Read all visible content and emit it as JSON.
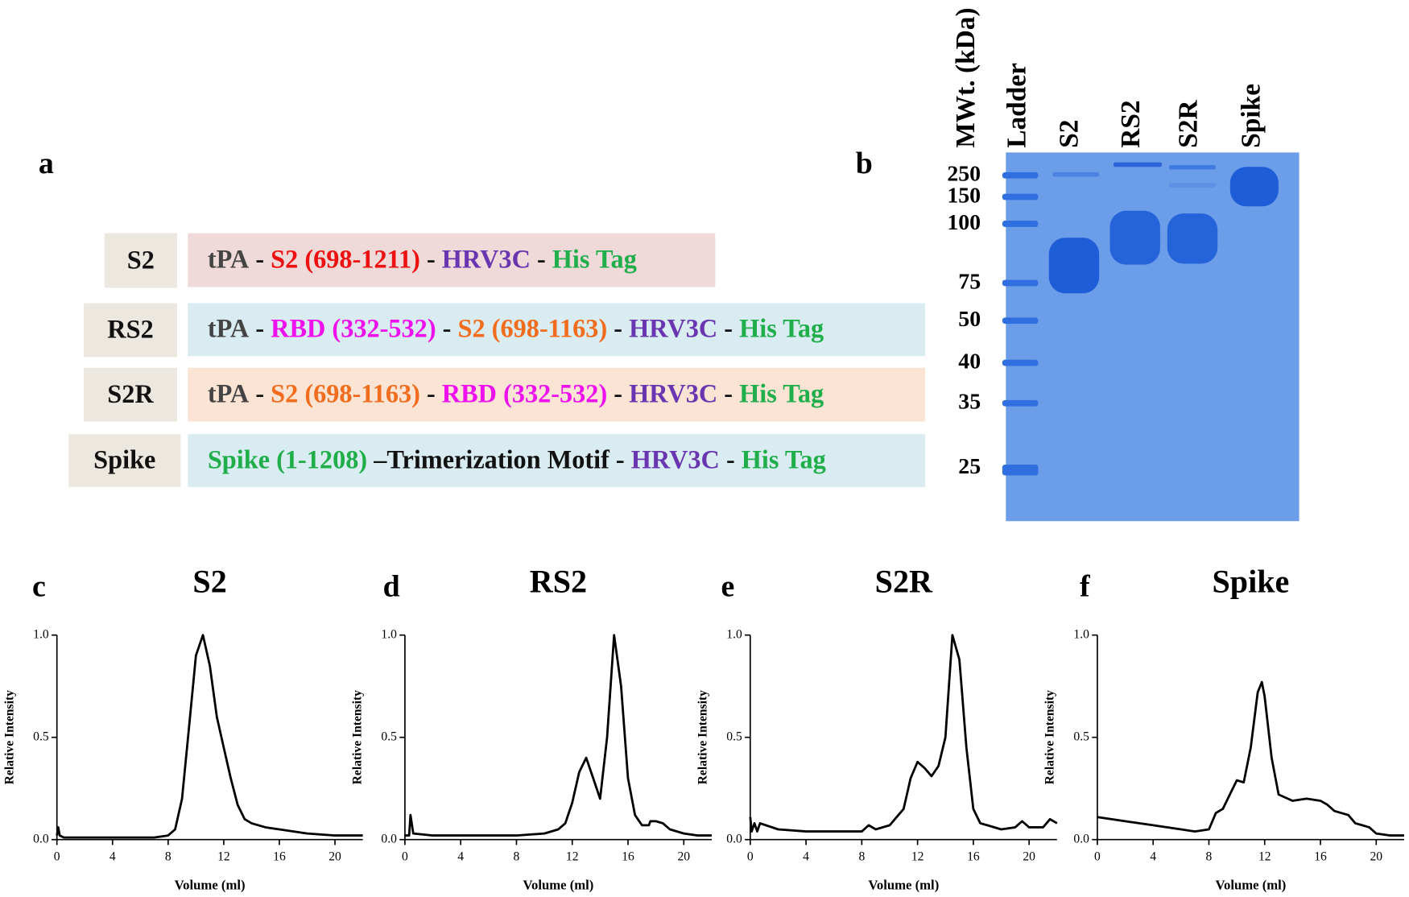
{
  "panel_labels": [
    "a",
    "b",
    "c",
    "d",
    "e",
    "f"
  ],
  "constructs": [
    {
      "label": "S2",
      "box": "#f0d9d9",
      "segments": [
        {
          "text": "tPA",
          "color": "#444444"
        },
        {
          "text": " - ",
          "color": "#111111"
        },
        {
          "text": "S2 (698-1211)",
          "color": "#ee1111"
        },
        {
          "text": " - ",
          "color": "#111111"
        },
        {
          "text": "HRV3C",
          "color": "#6a35b0"
        },
        {
          "text": " - ",
          "color": "#111111"
        },
        {
          "text": "His Tag",
          "color": "#1fae4a"
        }
      ]
    },
    {
      "label": "RS2",
      "box": "#d9ecf1",
      "segments": [
        {
          "text": "tPA",
          "color": "#444444"
        },
        {
          "text": " - ",
          "color": "#111111"
        },
        {
          "text": "RBD (332-532)",
          "color": "#ee11ee"
        },
        {
          "text": " - ",
          "color": "#111111"
        },
        {
          "text": "S2 (698-1163)",
          "color": "#f26c1e"
        },
        {
          "text": " - ",
          "color": "#111111"
        },
        {
          "text": "HRV3C",
          "color": "#6a35b0"
        },
        {
          "text": " - ",
          "color": "#111111"
        },
        {
          "text": "His Tag",
          "color": "#1fae4a"
        }
      ]
    },
    {
      "label": "S2R",
      "box": "#fbe4d4",
      "segments": [
        {
          "text": "tPA",
          "color": "#444444"
        },
        {
          "text": " - ",
          "color": "#111111"
        },
        {
          "text": "S2 (698-1163)",
          "color": "#f26c1e"
        },
        {
          "text": " - ",
          "color": "#111111"
        },
        {
          "text": "RBD (332-532)",
          "color": "#ee11ee"
        },
        {
          "text": " - ",
          "color": "#111111"
        },
        {
          "text": "HRV3C",
          "color": "#6a35b0"
        },
        {
          "text": " - ",
          "color": "#111111"
        },
        {
          "text": "His Tag",
          "color": "#1fae4a"
        }
      ]
    },
    {
      "label": "Spike",
      "box": "#d9ecf1",
      "segments": [
        {
          "text": "Spike (1-1208)",
          "color": "#1fae4a"
        },
        {
          "text": " –Trimerization Motif - ",
          "color": "#111111"
        },
        {
          "text": "HRV3C",
          "color": "#6a35b0"
        },
        {
          "text": " - ",
          "color": "#111111"
        },
        {
          "text": "His Tag",
          "color": "#1fae4a"
        }
      ]
    }
  ],
  "gel": {
    "mw_title": "MWt. (kDa)",
    "lanes": [
      "Ladder",
      "S2",
      "RS2",
      "S2R",
      "Spike"
    ],
    "markers": [
      "250",
      "150",
      "100",
      "75",
      "50",
      "40",
      "35",
      "25"
    ]
  },
  "chart_data": [
    {
      "type": "line",
      "title": "S2",
      "xlabel": "Volume (ml)",
      "ylabel": "Relative Intensity",
      "color": "#000000",
      "xlim": [
        0,
        22
      ],
      "xticks": [
        0,
        4,
        8,
        12,
        16,
        20
      ],
      "ylim": [
        0,
        1
      ],
      "yticks": [
        {
          "value": 0,
          "label": "0.0"
        },
        0.5,
        {
          "value": 1,
          "label": "1.0"
        }
      ],
      "x": [
        0,
        0.1,
        0.2,
        0.5,
        2,
        4,
        6,
        7,
        8,
        8.5,
        9,
        9.5,
        10,
        10.5,
        11,
        11.5,
        12,
        12.5,
        13,
        13.5,
        14,
        15,
        16,
        18,
        20,
        22
      ],
      "values": [
        0.02,
        0.06,
        0.02,
        0.01,
        0.01,
        0.01,
        0.01,
        0.01,
        0.02,
        0.05,
        0.2,
        0.55,
        0.9,
        1.0,
        0.85,
        0.6,
        0.45,
        0.3,
        0.17,
        0.1,
        0.08,
        0.06,
        0.05,
        0.03,
        0.02,
        0.02
      ]
    },
    {
      "type": "line",
      "title": "RS2",
      "xlabel": "Volume (ml)",
      "ylabel": "Relative Intensity",
      "color": "#000000",
      "xlim": [
        0,
        22
      ],
      "xticks": [
        0,
        4,
        8,
        12,
        16,
        20
      ],
      "ylim": [
        0,
        1
      ],
      "yticks": [
        {
          "value": 0,
          "label": "0.0"
        },
        0.5,
        {
          "value": 1,
          "label": "1.0"
        }
      ],
      "x": [
        0,
        0.3,
        0.4,
        0.6,
        2,
        4,
        6,
        8,
        10,
        11,
        11.5,
        12,
        12.5,
        13,
        13.5,
        14,
        14.5,
        15,
        15.5,
        16,
        16.5,
        17,
        17.5,
        17.6,
        18,
        18.5,
        19,
        20,
        21,
        22
      ],
      "values": [
        0.02,
        0.02,
        0.12,
        0.03,
        0.02,
        0.02,
        0.02,
        0.02,
        0.03,
        0.05,
        0.08,
        0.18,
        0.33,
        0.4,
        0.3,
        0.2,
        0.5,
        1.0,
        0.75,
        0.3,
        0.12,
        0.07,
        0.07,
        0.09,
        0.09,
        0.08,
        0.05,
        0.03,
        0.02,
        0.02
      ]
    },
    {
      "type": "line",
      "title": "S2R",
      "xlabel": "Volume (ml)",
      "ylabel": "Relative Intensity",
      "color": "#000000",
      "xlim": [
        0,
        22
      ],
      "xticks": [
        0,
        4,
        8,
        12,
        16,
        20
      ],
      "ylim": [
        0,
        1
      ],
      "yticks": [
        {
          "value": 0,
          "label": "0.0"
        },
        0.5,
        {
          "value": 1,
          "label": "1.0"
        }
      ],
      "x": [
        0,
        0.1,
        0.3,
        0.5,
        0.7,
        2,
        4,
        6,
        7,
        8,
        8.5,
        9,
        10,
        11,
        11.5,
        12,
        12.5,
        13,
        13.5,
        14,
        14.5,
        15,
        15.5,
        16,
        16.5,
        17,
        18,
        19,
        19.5,
        20,
        21,
        21.5,
        22
      ],
      "values": [
        0.11,
        0.04,
        0.08,
        0.04,
        0.08,
        0.05,
        0.04,
        0.04,
        0.04,
        0.04,
        0.07,
        0.05,
        0.07,
        0.15,
        0.3,
        0.38,
        0.35,
        0.31,
        0.36,
        0.5,
        1.0,
        0.88,
        0.45,
        0.15,
        0.08,
        0.07,
        0.05,
        0.06,
        0.09,
        0.06,
        0.06,
        0.1,
        0.08
      ]
    },
    {
      "type": "line",
      "title": "Spike",
      "xlabel": "Volume (ml)",
      "ylabel": "Relative Intensity",
      "color": "#000000",
      "xlim": [
        0,
        22
      ],
      "xticks": [
        0,
        4,
        8,
        12,
        16,
        20
      ],
      "ylim": [
        0,
        1
      ],
      "yticks": [
        {
          "value": 0,
          "label": "0.0"
        },
        0.5,
        {
          "value": 1,
          "label": "1.0"
        }
      ],
      "x": [
        0,
        2,
        4,
        6,
        7,
        8,
        8.5,
        9,
        9.5,
        10,
        10.5,
        11,
        11.5,
        11.8,
        12,
        12.5,
        13,
        14,
        15,
        16,
        16.5,
        17,
        18,
        18.5,
        19,
        19.5,
        20,
        21,
        22
      ],
      "values": [
        0.11,
        0.09,
        0.07,
        0.05,
        0.04,
        0.05,
        0.13,
        0.15,
        0.22,
        0.29,
        0.28,
        0.45,
        0.72,
        0.77,
        0.7,
        0.4,
        0.22,
        0.19,
        0.2,
        0.19,
        0.17,
        0.14,
        0.12,
        0.08,
        0.07,
        0.06,
        0.03,
        0.02,
        0.02
      ]
    }
  ]
}
